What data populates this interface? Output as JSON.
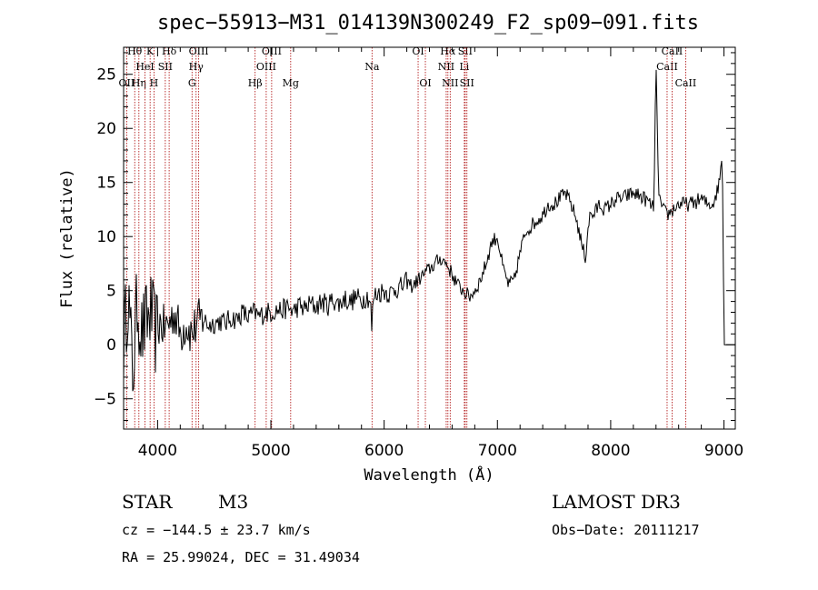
{
  "chart_data": {
    "type": "line",
    "title": "spec−55913−M31_014139N300249_F2_sp09−091.fits",
    "xlabel": "Wavelength (Å)",
    "ylabel": "Flux (relative)",
    "xlim": [
      3700,
      9100
    ],
    "ylim": [
      -7.8,
      27.5
    ],
    "xticks": [
      4000,
      5000,
      6000,
      7000,
      8000,
      9000
    ],
    "yticks": [
      -5,
      0,
      5,
      10,
      15,
      20,
      25
    ],
    "xtick_labels": [
      "4000",
      "5000",
      "6000",
      "7000",
      "8000",
      "9000"
    ],
    "ytick_labels": [
      "−5",
      "0",
      "5",
      "10",
      "15",
      "20",
      "25"
    ],
    "series": [
      {
        "name": "flux",
        "x": [
          3700,
          3740,
          3780,
          3820,
          3860,
          3900,
          3940,
          3980,
          4020,
          4060,
          4100,
          4150,
          4200,
          4250,
          4300,
          4350,
          4400,
          4450,
          4500,
          4550,
          4600,
          4650,
          4700,
          4750,
          4800,
          4850,
          4900,
          4950,
          5000,
          5050,
          5100,
          5150,
          5200,
          5250,
          5300,
          5350,
          5400,
          5450,
          5500,
          5550,
          5600,
          5650,
          5700,
          5750,
          5800,
          5850,
          5880,
          5890,
          5895,
          5900,
          5920,
          5950,
          6000,
          6050,
          6100,
          6150,
          6200,
          6250,
          6300,
          6350,
          6400,
          6450,
          6500,
          6550,
          6600,
          6650,
          6700,
          6750,
          6800,
          6850,
          6900,
          6950,
          7000,
          7050,
          7100,
          7150,
          7200,
          7250,
          7300,
          7350,
          7400,
          7450,
          7500,
          7550,
          7600,
          7650,
          7700,
          7750,
          7780,
          7800,
          7820,
          7850,
          7900,
          7950,
          8000,
          8050,
          8100,
          8150,
          8200,
          8250,
          8300,
          8350,
          8380,
          8400,
          8420,
          8440,
          8460,
          8500,
          8550,
          8600,
          8650,
          8700,
          8750,
          8800,
          8850,
          8900,
          8950,
          8980,
          8990,
          9000
        ],
        "y": [
          0,
          5,
          -3,
          4,
          1,
          2,
          3,
          1,
          2,
          1.5,
          2,
          3,
          1,
          2,
          1,
          2,
          2.5,
          1.8,
          2,
          2.2,
          2,
          2.5,
          2.3,
          3,
          2.5,
          3,
          2.6,
          3,
          3,
          3.2,
          3.2,
          3.4,
          3.1,
          3.6,
          3.3,
          3.8,
          3.5,
          4,
          3.6,
          4.2,
          3.7,
          4.3,
          3.9,
          4.4,
          4.1,
          4.5,
          4,
          1.5,
          0,
          4.2,
          4.6,
          4.8,
          5,
          4.7,
          5.2,
          5.3,
          5.8,
          5.4,
          6,
          6.5,
          7,
          7.5,
          8,
          7.5,
          6.5,
          5.5,
          5,
          4.4,
          5,
          6,
          7.5,
          9.5,
          10,
          7,
          5.5,
          6,
          8.5,
          10.5,
          11,
          11.5,
          12,
          13,
          13,
          13.5,
          14,
          13,
          11.5,
          9,
          8,
          11,
          12,
          12,
          13,
          12.5,
          13,
          13.5,
          13.5,
          13.8,
          14,
          13.8,
          13.5,
          13,
          12.5,
          26,
          15,
          13,
          12.5,
          12,
          12.5,
          13,
          13,
          13,
          13.2,
          13.5,
          13,
          13,
          14.5,
          17,
          14,
          0
        ]
      }
    ],
    "line_markers": [
      {
        "name": "O II",
        "label": "OII",
        "wl": 3727,
        "row": 3
      },
      {
        "name": "H-theta",
        "label": "Hθ",
        "wl": 3798,
        "row": 1
      },
      {
        "name": "H-eta",
        "label": "Hη",
        "wl": 3835,
        "row": 3
      },
      {
        "name": "Ca II K",
        "label": "K",
        "wl": 3934,
        "row": 1
      },
      {
        "name": "He I",
        "label": "HeI",
        "wl": 3889,
        "row": 2
      },
      {
        "name": "Ca II H",
        "label": "H",
        "wl": 3968,
        "row": 3
      },
      {
        "name": "S II 4068",
        "label": "SII",
        "wl": 4068,
        "row": 2
      },
      {
        "name": "H-delta",
        "label": "Hδ",
        "wl": 4102,
        "row": 1
      },
      {
        "name": "G band",
        "label": "G",
        "wl": 4304,
        "row": 3
      },
      {
        "name": "H-gamma",
        "label": "Hγ",
        "wl": 4340,
        "row": 2
      },
      {
        "name": "O III 4363",
        "label": "OIII",
        "wl": 4363,
        "row": 1
      },
      {
        "name": "H-beta",
        "label": "Hβ",
        "wl": 4861,
        "row": 3
      },
      {
        "name": "O III 4959",
        "label": "OIII",
        "wl": 4959,
        "row": 2
      },
      {
        "name": "O III 5007",
        "label": "OIII",
        "wl": 5007,
        "row": 1
      },
      {
        "name": "Mg",
        "label": "Mg",
        "wl": 5175,
        "row": 3
      },
      {
        "name": "Na",
        "label": "Na",
        "wl": 5893,
        "row": 2
      },
      {
        "name": "O I 6300",
        "label": "OI",
        "wl": 6300,
        "row": 1
      },
      {
        "name": "O I 6364",
        "label": "OI",
        "wl": 6364,
        "row": 3
      },
      {
        "name": "N II 6548",
        "label": "NII",
        "wl": 6548,
        "row": 2
      },
      {
        "name": "H-alpha",
        "label": "Hα",
        "wl": 6563,
        "row": 1
      },
      {
        "name": "N II 6583",
        "label": "NII",
        "wl": 6583,
        "row": 3
      },
      {
        "name": "Li",
        "label": "Li",
        "wl": 6708,
        "row": 2
      },
      {
        "name": "S II 6716",
        "label": "SII",
        "wl": 6716,
        "row": 1
      },
      {
        "name": "S II 6731",
        "label": "SII",
        "wl": 6731,
        "row": 3
      },
      {
        "name": "Ca II 8498",
        "label": "CaII",
        "wl": 8498,
        "row": 2
      },
      {
        "name": "Ca II 8542",
        "label": "CaII",
        "wl": 8542,
        "row": 1
      },
      {
        "name": "Ca II 8662",
        "label": "CaII",
        "wl": 8662,
        "row": 3
      }
    ],
    "line_color": "#000000",
    "marker_color": "#aa0000"
  },
  "info": {
    "class": "STAR",
    "subclass": "M3",
    "survey": "LAMOST DR3",
    "cz": "cz = −144.5 ± 23.7 km/s",
    "obs_date": "Obs−Date: 20111217",
    "radec": "RA =  25.99024, DEC =  31.49034"
  }
}
